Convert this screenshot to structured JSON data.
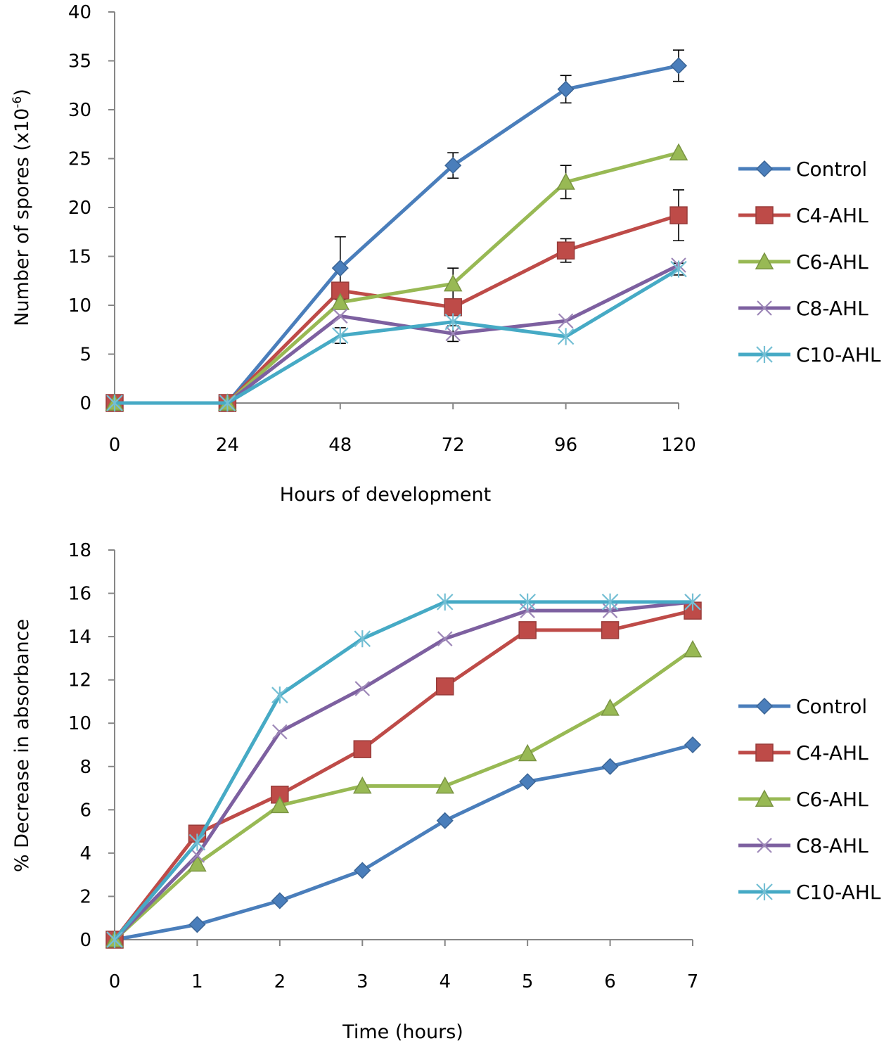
{
  "chart_data": [
    {
      "type": "line",
      "title": "",
      "xlabel": "Hours of development",
      "ylabel": "Number of spores (x10",
      "ylabel_sup": "-6",
      "ylabel_end": ")",
      "x": [
        0,
        24,
        48,
        72,
        96,
        120
      ],
      "x_tick_labels": [
        "0",
        "24",
        "48",
        "72",
        "96",
        "120"
      ],
      "ylim": [
        0,
        40
      ],
      "y_ticks": [
        0,
        5,
        10,
        15,
        20,
        25,
        30,
        35,
        40
      ],
      "grid": false,
      "legend_position": "right",
      "series": [
        {
          "name": "Control",
          "color": "#4a7ebb",
          "marker": "diamond",
          "values": [
            0,
            0,
            13.8,
            24.3,
            32.1,
            34.5
          ],
          "errors": [
            0,
            0,
            3.2,
            1.3,
            1.4,
            1.6
          ]
        },
        {
          "name": "C4-AHL",
          "color": "#be4b48",
          "marker": "square",
          "values": [
            0,
            0,
            11.5,
            9.8,
            15.6,
            19.2
          ],
          "errors": [
            0,
            0,
            0,
            0,
            1.2,
            2.6
          ]
        },
        {
          "name": "C6-AHL",
          "color": "#98b954",
          "marker": "triangle",
          "values": [
            0,
            0,
            10.3,
            12.2,
            22.6,
            25.6
          ],
          "errors": [
            0,
            0,
            0,
            1.6,
            1.7,
            0
          ]
        },
        {
          "name": "C8-AHL",
          "color": "#7d60a0",
          "marker": "x",
          "values": [
            0,
            0,
            8.9,
            7.1,
            8.4,
            14.1
          ],
          "errors": [
            0,
            0,
            0,
            0.8,
            0,
            0
          ]
        },
        {
          "name": "C10-AHL",
          "color": "#46aac5",
          "marker": "star",
          "values": [
            0,
            0,
            6.9,
            8.3,
            6.8,
            13.7
          ],
          "errors": [
            0,
            0,
            0.8,
            0,
            0,
            0.6
          ]
        }
      ]
    },
    {
      "type": "line",
      "title": "",
      "xlabel": "Time (hours)",
      "ylabel": "% Decrease in absorbance",
      "x": [
        0,
        1,
        2,
        3,
        4,
        5,
        6,
        7
      ],
      "x_tick_labels": [
        "0",
        "1",
        "2",
        "3",
        "4",
        "5",
        "6",
        "7"
      ],
      "ylim": [
        0,
        18
      ],
      "y_ticks": [
        0,
        2,
        4,
        6,
        8,
        10,
        12,
        14,
        16,
        18
      ],
      "grid": false,
      "legend_position": "right",
      "series": [
        {
          "name": "Control",
          "color": "#4a7ebb",
          "marker": "diamond",
          "values": [
            0,
            0.7,
            1.8,
            3.2,
            5.5,
            7.3,
            8.0,
            9.0
          ]
        },
        {
          "name": "C4-AHL",
          "color": "#be4b48",
          "marker": "square",
          "values": [
            0,
            4.9,
            6.7,
            8.8,
            11.7,
            14.3,
            14.3,
            15.2
          ]
        },
        {
          "name": "C6-AHL",
          "color": "#98b954",
          "marker": "triangle",
          "values": [
            0,
            3.5,
            6.2,
            7.1,
            7.1,
            8.6,
            10.7,
            13.4
          ]
        },
        {
          "name": "C8-AHL",
          "color": "#7d60a0",
          "marker": "x",
          "values": [
            0,
            3.9,
            9.6,
            11.6,
            13.9,
            15.2,
            15.2,
            15.6
          ]
        },
        {
          "name": "C10-AHL",
          "color": "#46aac5",
          "marker": "star",
          "values": [
            0,
            4.5,
            11.3,
            13.9,
            15.6,
            15.6,
            15.6,
            15.6
          ]
        }
      ]
    }
  ]
}
